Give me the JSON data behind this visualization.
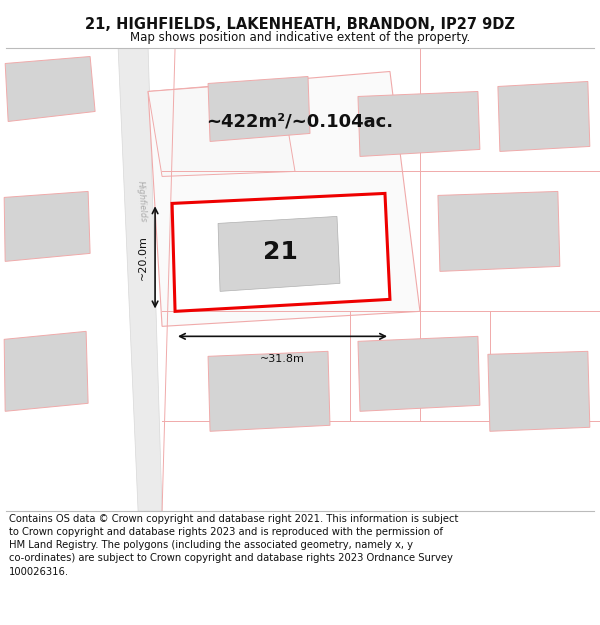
{
  "title": "21, HIGHFIELDS, LAKENHEATH, BRANDON, IP27 9DZ",
  "subtitle": "Map shows position and indicative extent of the property.",
  "footer_line1": "Contains OS data © Crown copyright and database right 2021. This information is subject",
  "footer_line2": "to Crown copyright and database rights 2023 and is reproduced with the permission of",
  "footer_line3": "HM Land Registry. The polygons (including the associated geometry, namely x, y",
  "footer_line4": "co-ordinates) are subject to Crown copyright and database rights 2023 Ordnance Survey",
  "footer_line5": "100026316.",
  "area_label": "~422m²/~0.104ac.",
  "number_label": "21",
  "width_label": "~31.8m",
  "height_label": "~20.0m",
  "bg_color": "#ffffff",
  "map_bg": "#f7f7f7",
  "road_fill": "#ebebeb",
  "pink": "#f0aaaa",
  "red": "#ee0000",
  "gray_bld": "#d4d4d4",
  "white": "#ffffff",
  "title_fontsize": 10.5,
  "subtitle_fontsize": 8.5,
  "footer_fontsize": 7.2,
  "area_fontsize": 13,
  "number_fontsize": 18,
  "dim_fontsize": 8
}
